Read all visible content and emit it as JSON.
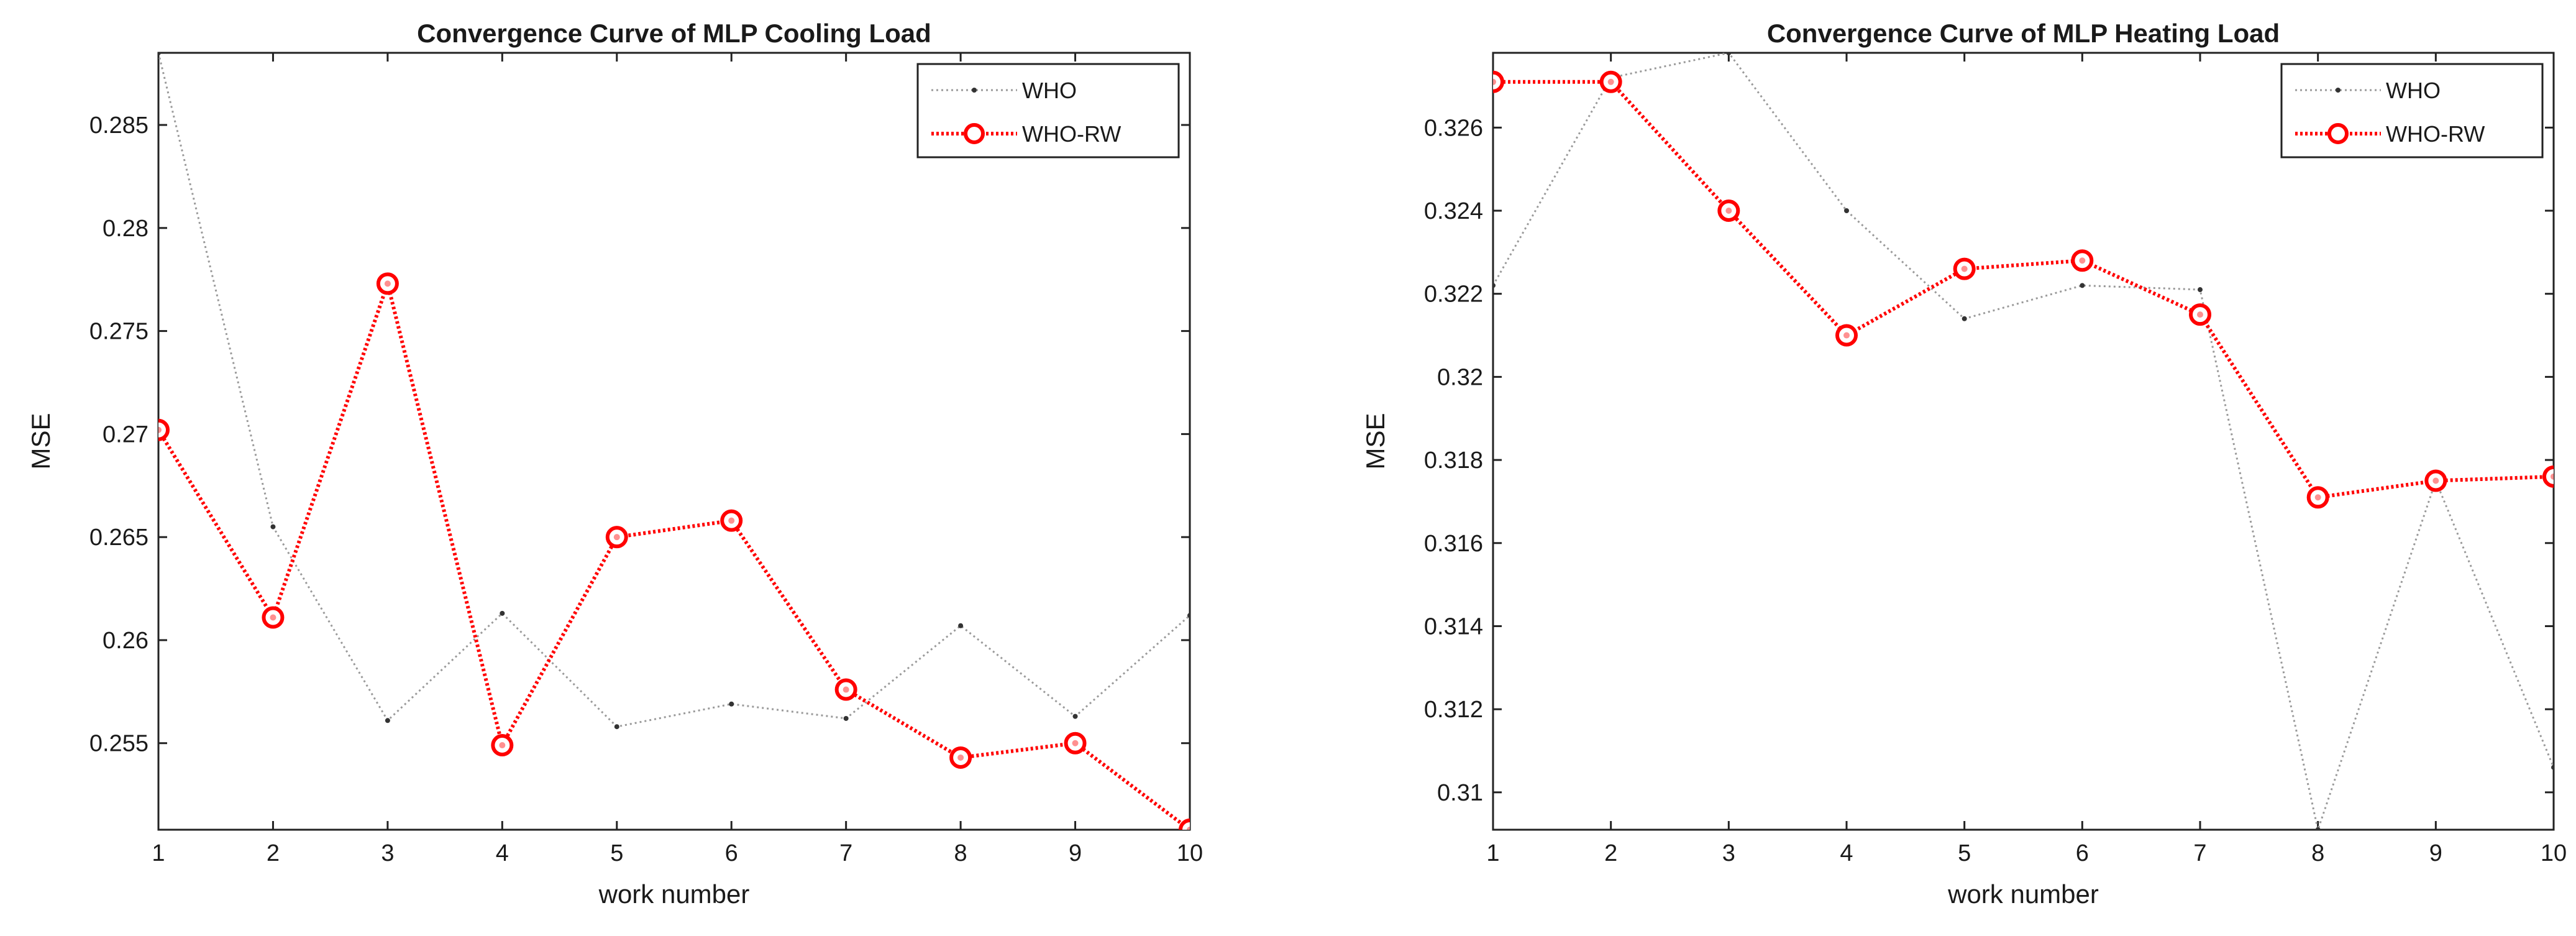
{
  "chart_data": [
    {
      "type": "line",
      "title": "Convergence Curve  of MLP Cooling Load",
      "xlabel": "work number",
      "ylabel": "MSE",
      "x": [
        1,
        2,
        3,
        4,
        5,
        6,
        7,
        8,
        9,
        10
      ],
      "xlim": [
        1,
        10
      ],
      "ylim": [
        0.2508,
        0.2885
      ],
      "xticks": [
        "1",
        "2",
        "3",
        "4",
        "5",
        "6",
        "7",
        "8",
        "9",
        "10"
      ],
      "yticks": [
        "0.255",
        "0.26",
        "0.265",
        "0.27",
        "0.275",
        "0.28",
        "0.285"
      ],
      "legend": "top-right",
      "grid": false,
      "series": [
        {
          "name": "WHO",
          "color": "#9a9a9a",
          "marker": "dot",
          "values": [
            0.2885,
            0.2655,
            0.2561,
            0.2613,
            0.2558,
            0.2569,
            0.2562,
            0.2607,
            0.2563,
            0.2612
          ]
        },
        {
          "name": "WHO-RW",
          "color": "#ff0000",
          "marker": "circle",
          "values": [
            0.2702,
            0.2611,
            0.2773,
            0.2549,
            0.265,
            0.2658,
            0.2576,
            0.2543,
            0.255,
            0.2508
          ]
        }
      ]
    },
    {
      "type": "line",
      "title": "Convergence Curve  of MLP Heating Load",
      "xlabel": "work number",
      "ylabel": "MSE",
      "x": [
        1,
        2,
        3,
        4,
        5,
        6,
        7,
        8,
        9,
        10
      ],
      "xlim": [
        1,
        10
      ],
      "ylim": [
        0.3091,
        0.3278
      ],
      "xticks": [
        "1",
        "2",
        "3",
        "4",
        "5",
        "6",
        "7",
        "8",
        "9",
        "10"
      ],
      "yticks": [
        "0.31",
        "0.312",
        "0.314",
        "0.316",
        "0.318",
        "0.32",
        "0.322",
        "0.324",
        "0.326"
      ],
      "legend": "top-right",
      "grid": false,
      "series": [
        {
          "name": "WHO",
          "color": "#9a9a9a",
          "marker": "dot",
          "values": [
            0.3222,
            0.3272,
            0.3278,
            0.324,
            0.3214,
            0.3222,
            0.3221,
            0.3091,
            0.3175,
            0.3106
          ]
        },
        {
          "name": "WHO-RW",
          "color": "#ff0000",
          "marker": "circle",
          "values": [
            0.3271,
            0.3271,
            0.324,
            0.321,
            0.3226,
            0.3228,
            0.3215,
            0.3171,
            0.3175,
            0.3176
          ]
        }
      ]
    }
  ]
}
